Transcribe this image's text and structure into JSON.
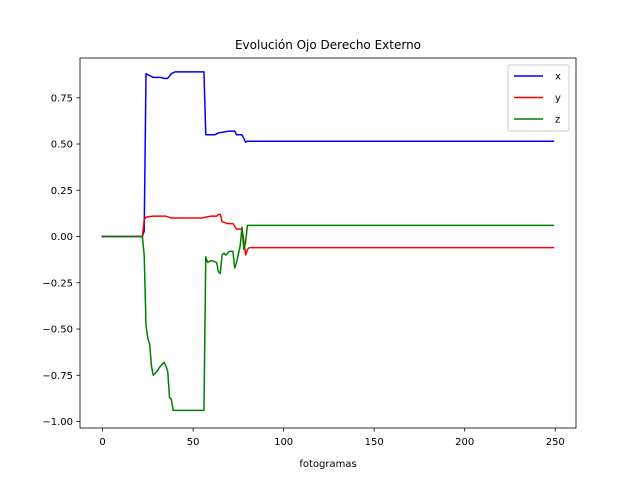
{
  "chart_data": {
    "type": "line",
    "title": "Evolución Ojo Derecho Externo",
    "xlabel": "fotogramas",
    "ylabel": "",
    "xlim": [
      -12.45,
      261.45
    ],
    "ylim": [
      -1.035,
      0.965
    ],
    "xticks": [
      0,
      50,
      100,
      150,
      200,
      250
    ],
    "yticks": [
      -1.0,
      -0.75,
      -0.5,
      -0.25,
      0.0,
      0.25,
      0.5,
      0.75
    ],
    "ytick_labels": [
      "−1.00",
      "−0.75",
      "−0.50",
      "−0.25",
      "0.00",
      "0.25",
      "0.50",
      "0.75"
    ],
    "grid": false,
    "legend": {
      "position": "top-right"
    },
    "series": [
      {
        "name": "x",
        "color": "#0000ff",
        "points": [
          [
            0,
            0
          ],
          [
            22,
            0
          ],
          [
            23,
            0.03
          ],
          [
            24,
            0.88
          ],
          [
            26,
            0.87
          ],
          [
            28,
            0.86
          ],
          [
            30,
            0.86
          ],
          [
            32,
            0.86
          ],
          [
            34,
            0.855
          ],
          [
            36,
            0.855
          ],
          [
            38,
            0.88
          ],
          [
            40,
            0.89
          ],
          [
            45,
            0.89
          ],
          [
            50,
            0.89
          ],
          [
            56,
            0.89
          ],
          [
            57,
            0.55
          ],
          [
            62,
            0.55
          ],
          [
            64,
            0.56
          ],
          [
            67,
            0.565
          ],
          [
            70,
            0.57
          ],
          [
            73,
            0.57
          ],
          [
            74,
            0.55
          ],
          [
            77,
            0.55
          ],
          [
            78,
            0.53
          ],
          [
            79,
            0.51
          ],
          [
            80,
            0.515
          ],
          [
            249,
            0.515
          ]
        ]
      },
      {
        "name": "y",
        "color": "#ff0000",
        "points": [
          [
            0,
            0
          ],
          [
            22,
            0
          ],
          [
            23,
            0.09
          ],
          [
            24,
            0.105
          ],
          [
            28,
            0.11
          ],
          [
            30,
            0.11
          ],
          [
            35,
            0.11
          ],
          [
            38,
            0.1
          ],
          [
            45,
            0.1
          ],
          [
            55,
            0.1
          ],
          [
            57,
            0.105
          ],
          [
            60,
            0.11
          ],
          [
            63,
            0.11
          ],
          [
            64,
            0.12
          ],
          [
            65,
            0.12
          ],
          [
            66,
            0.08
          ],
          [
            69,
            0.07
          ],
          [
            72,
            0.07
          ],
          [
            74,
            0.04
          ],
          [
            77,
            0.04
          ],
          [
            78,
            -0.02
          ],
          [
            79,
            -0.1
          ],
          [
            80,
            -0.07
          ],
          [
            81,
            -0.06
          ],
          [
            249,
            -0.06
          ]
        ]
      },
      {
        "name": "z",
        "color": "#008000",
        "points": [
          [
            0,
            0
          ],
          [
            22,
            0
          ],
          [
            23,
            -0.1
          ],
          [
            24,
            -0.48
          ],
          [
            25,
            -0.55
          ],
          [
            26,
            -0.58
          ],
          [
            27,
            -0.7
          ],
          [
            28,
            -0.75
          ],
          [
            30,
            -0.73
          ],
          [
            32,
            -0.7
          ],
          [
            34,
            -0.68
          ],
          [
            35,
            -0.7
          ],
          [
            36,
            -0.73
          ],
          [
            37,
            -0.87
          ],
          [
            38,
            -0.88
          ],
          [
            39,
            -0.94
          ],
          [
            45,
            -0.94
          ],
          [
            50,
            -0.94
          ],
          [
            56,
            -0.94
          ],
          [
            57,
            -0.11
          ],
          [
            58,
            -0.14
          ],
          [
            60,
            -0.13
          ],
          [
            63,
            -0.14
          ],
          [
            64,
            -0.19
          ],
          [
            65,
            -0.2
          ],
          [
            66,
            -0.1
          ],
          [
            67,
            -0.09
          ],
          [
            68,
            -0.1
          ],
          [
            70,
            -0.08
          ],
          [
            72,
            -0.08
          ],
          [
            73,
            -0.17
          ],
          [
            74,
            -0.14
          ],
          [
            76,
            -0.05
          ],
          [
            77,
            0.05
          ],
          [
            78,
            -0.07
          ],
          [
            79,
            -0.03
          ],
          [
            80,
            0.06
          ],
          [
            249,
            0.06
          ]
        ]
      }
    ]
  }
}
